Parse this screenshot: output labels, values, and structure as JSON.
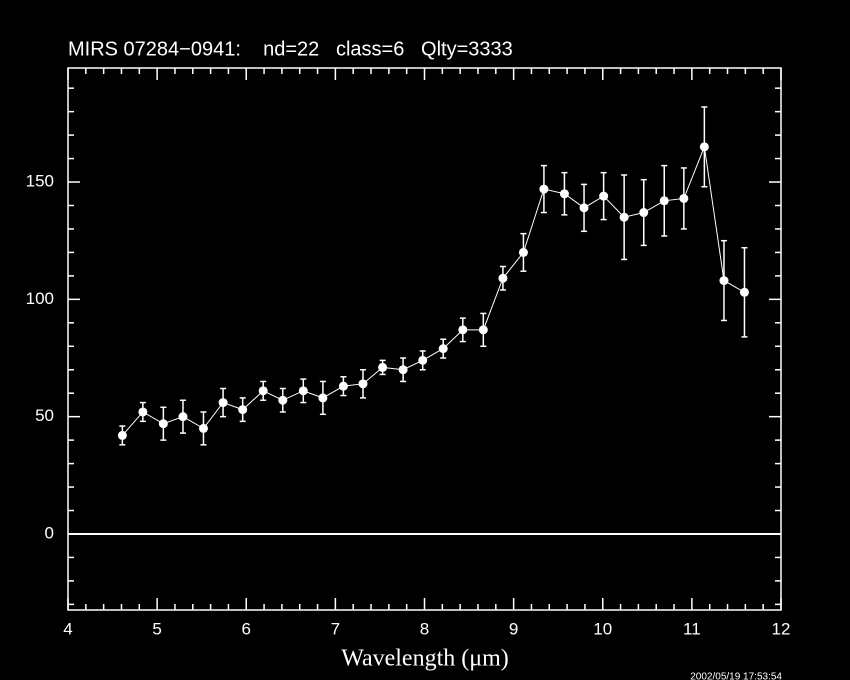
{
  "chart_data": {
    "type": "errorline",
    "title": "MIRS 07284−0941:    nd=22   class=6   Qlty=3333",
    "xlabel": "Wavelength (μm)",
    "timestamp": "2002/05/19 17:53:54",
    "x": [
      4.61,
      4.84,
      5.07,
      5.29,
      5.52,
      5.74,
      5.96,
      6.19,
      6.41,
      6.64,
      6.86,
      7.09,
      7.31,
      7.53,
      7.76,
      7.98,
      8.21,
      8.43,
      8.66,
      8.88,
      9.11,
      9.34,
      9.57,
      9.79,
      10.01,
      10.24,
      10.46,
      10.69,
      10.91,
      11.14,
      11.36,
      11.59
    ],
    "values": [
      42,
      52,
      47,
      50,
      45,
      56,
      53,
      61,
      57,
      61,
      58,
      63,
      64,
      71,
      70,
      74,
      79,
      87,
      87,
      109,
      120,
      147,
      145,
      139,
      144,
      135,
      137,
      142,
      143,
      165,
      108,
      103
    ],
    "errors": [
      4,
      4,
      7,
      7,
      7,
      6,
      5,
      4,
      5,
      5,
      7,
      4,
      6,
      3,
      5,
      4,
      4,
      5,
      7,
      5,
      8,
      10,
      9,
      10,
      10,
      18,
      14,
      15,
      13,
      17,
      17,
      19
    ],
    "color": "#ffffff",
    "xlim": [
      4,
      12
    ],
    "ylim": [
      -32.4,
      198.6
    ],
    "xticks": [
      4,
      5,
      6,
      7,
      8,
      9,
      10,
      11,
      12
    ],
    "yticks": [
      0,
      50,
      100,
      150
    ],
    "xminor_ticks": [
      4.2,
      4.4,
      4.6,
      4.8,
      5.2,
      5.4,
      5.6,
      5.8,
      6.2,
      6.4,
      6.6,
      6.8,
      7.2,
      7.4,
      7.6,
      7.8,
      8.2,
      8.4,
      8.6,
      8.8,
      9.2,
      9.4,
      9.6,
      9.8,
      10.2,
      10.4,
      10.6,
      10.8,
      11.2,
      11.4,
      11.6,
      11.8
    ],
    "yminor_ticks": [
      -30,
      -20,
      -10,
      10,
      20,
      30,
      40,
      60,
      70,
      80,
      90,
      110,
      120,
      130,
      140,
      160,
      170,
      180,
      190
    ],
    "hline": 0
  }
}
